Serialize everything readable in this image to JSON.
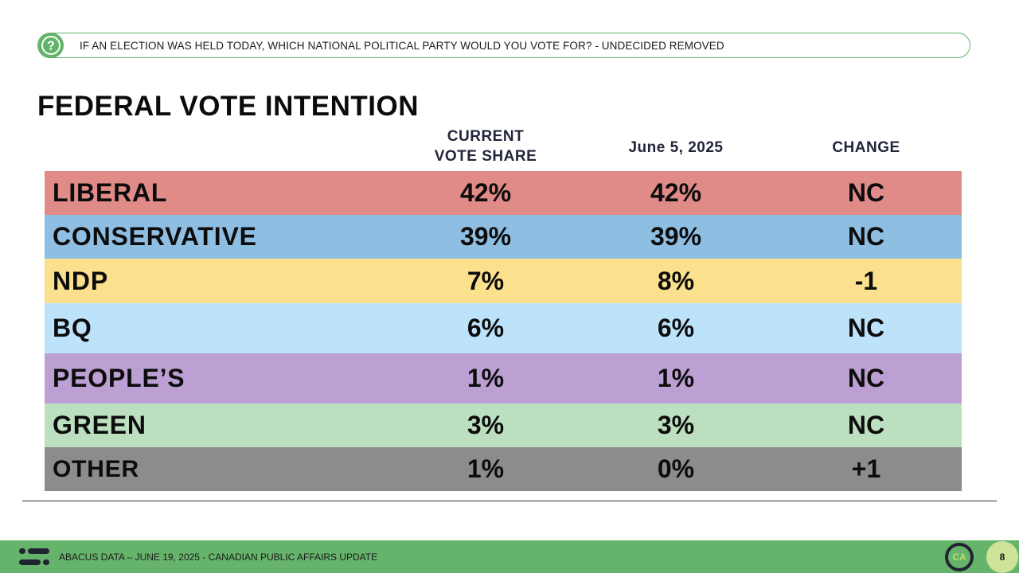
{
  "question": {
    "icon": "question-mark-icon",
    "text": "IF AN ELECTION WAS HELD TODAY, WHICH NATIONAL POLITICAL PARTY WOULD YOU VOTE FOR? - UNDECIDED REMOVED"
  },
  "title": "FEDERAL VOTE INTENTION",
  "columns": {
    "current_line1": "CURRENT",
    "current_line2": "VOTE SHARE",
    "previous": "June 5, 2025",
    "change": "CHANGE"
  },
  "rows": [
    {
      "party": "LIBERAL",
      "current": "42%",
      "previous": "42%",
      "change": "NC",
      "color": "#e08b87"
    },
    {
      "party": "CONSERVATIVE",
      "current": "39%",
      "previous": "39%",
      "change": "NC",
      "color": "#8fbee3"
    },
    {
      "party": "NDP",
      "current": "7%",
      "previous": "8%",
      "change": "-1",
      "color": "#fbe08e"
    },
    {
      "party": "BQ",
      "current": "6%",
      "previous": "6%",
      "change": "NC",
      "color": "#bde3fb"
    },
    {
      "party": "PEOPLE’S",
      "current": "1%",
      "previous": "1%",
      "change": "NC",
      "color": "#bda0d3"
    },
    {
      "party": "GREEN",
      "current": "3%",
      "previous": "3%",
      "change": "NC",
      "color": "#bcdfbf"
    },
    {
      "party": "OTHER",
      "current": "1%",
      "previous": "0%",
      "change": "+1",
      "color": "#8c8c8c"
    }
  ],
  "footer": {
    "logo_icon": "abacus-logo-icon",
    "text": "ABACUS DATA – JUNE 19, 2025 - CANADIAN PUBLIC AFFAIRS UPDATE",
    "badge": "CA",
    "page_number": "8",
    "bar_color": "#66b36b"
  }
}
